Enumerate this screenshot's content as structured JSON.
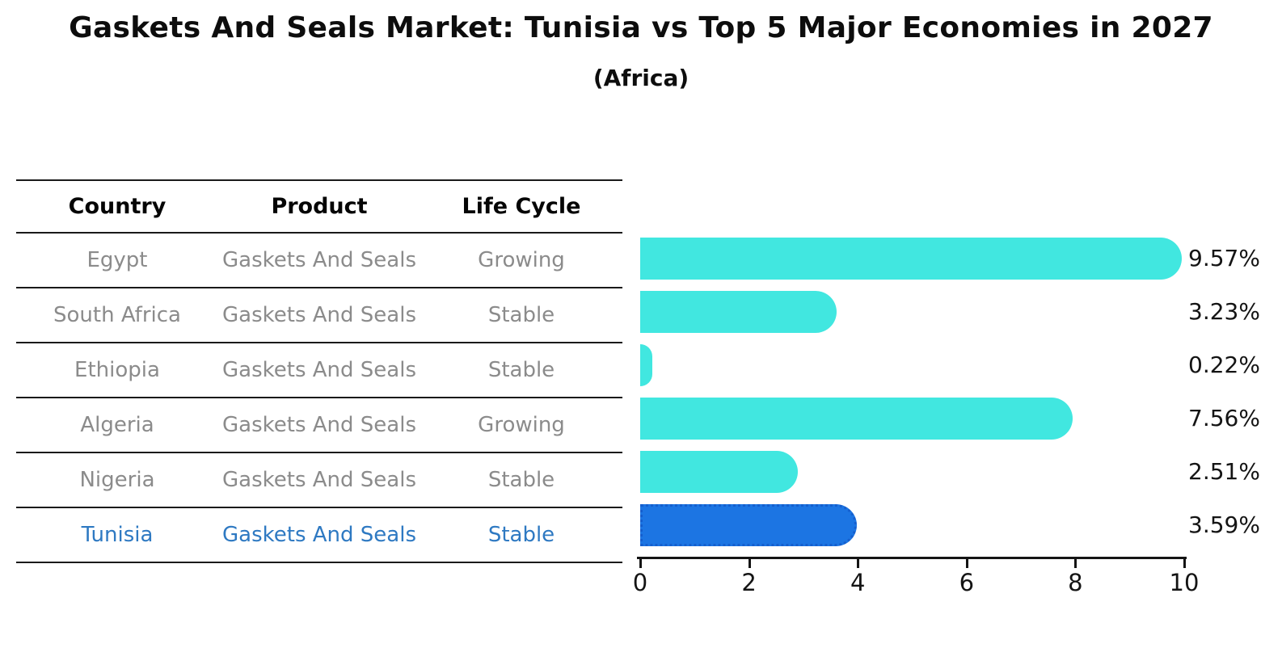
{
  "title": "Gaskets And Seals Market: Tunisia vs Top 5 Major Economies in 2027",
  "subtitle": "(Africa)",
  "table": {
    "headers": [
      "Country",
      "Product",
      "Life Cycle"
    ],
    "rows": [
      {
        "country": "Egypt",
        "product": "Gaskets And Seals",
        "life_cycle": "Growing",
        "highlighted": false
      },
      {
        "country": "South Africa",
        "product": "Gaskets And Seals",
        "life_cycle": "Stable",
        "highlighted": false
      },
      {
        "country": "Ethiopia",
        "product": "Gaskets And Seals",
        "life_cycle": "Stable",
        "highlighted": false
      },
      {
        "country": "Algeria",
        "product": "Gaskets And Seals",
        "life_cycle": "Growing",
        "highlighted": false
      },
      {
        "country": "Nigeria",
        "product": "Gaskets And Seals",
        "life_cycle": "Stable",
        "highlighted": false
      },
      {
        "country": "Tunisia",
        "product": "Gaskets And Seals",
        "life_cycle": "Stable",
        "highlighted": true
      }
    ]
  },
  "chart_data": {
    "type": "bar",
    "orientation": "horizontal",
    "title": "Gaskets And Seals Market: Tunisia vs Top 5 Major Economies in 2027",
    "subtitle": "(Africa)",
    "categories": [
      "Egypt",
      "South Africa",
      "Ethiopia",
      "Algeria",
      "Nigeria",
      "Tunisia"
    ],
    "values": [
      9.57,
      3.23,
      0.22,
      7.56,
      2.51,
      3.59
    ],
    "value_labels": [
      "9.57%",
      "3.23%",
      "0.22%",
      "7.56%",
      "2.51%",
      "3.59%"
    ],
    "xlabel": "",
    "ylabel": "",
    "xlim": [
      0,
      10
    ],
    "xticks": [
      "0",
      "2",
      "4",
      "6",
      "8",
      "10"
    ],
    "grid": false,
    "legend": "none",
    "highlight_index": 5,
    "colors": {
      "bar": "#41e7e0",
      "highlight_bar": "#1c75e3",
      "highlight_border": "#155fce",
      "highlight_text": "#2e79c2",
      "table_text": "#8b8b8b",
      "axis_text": "#141414"
    }
  }
}
